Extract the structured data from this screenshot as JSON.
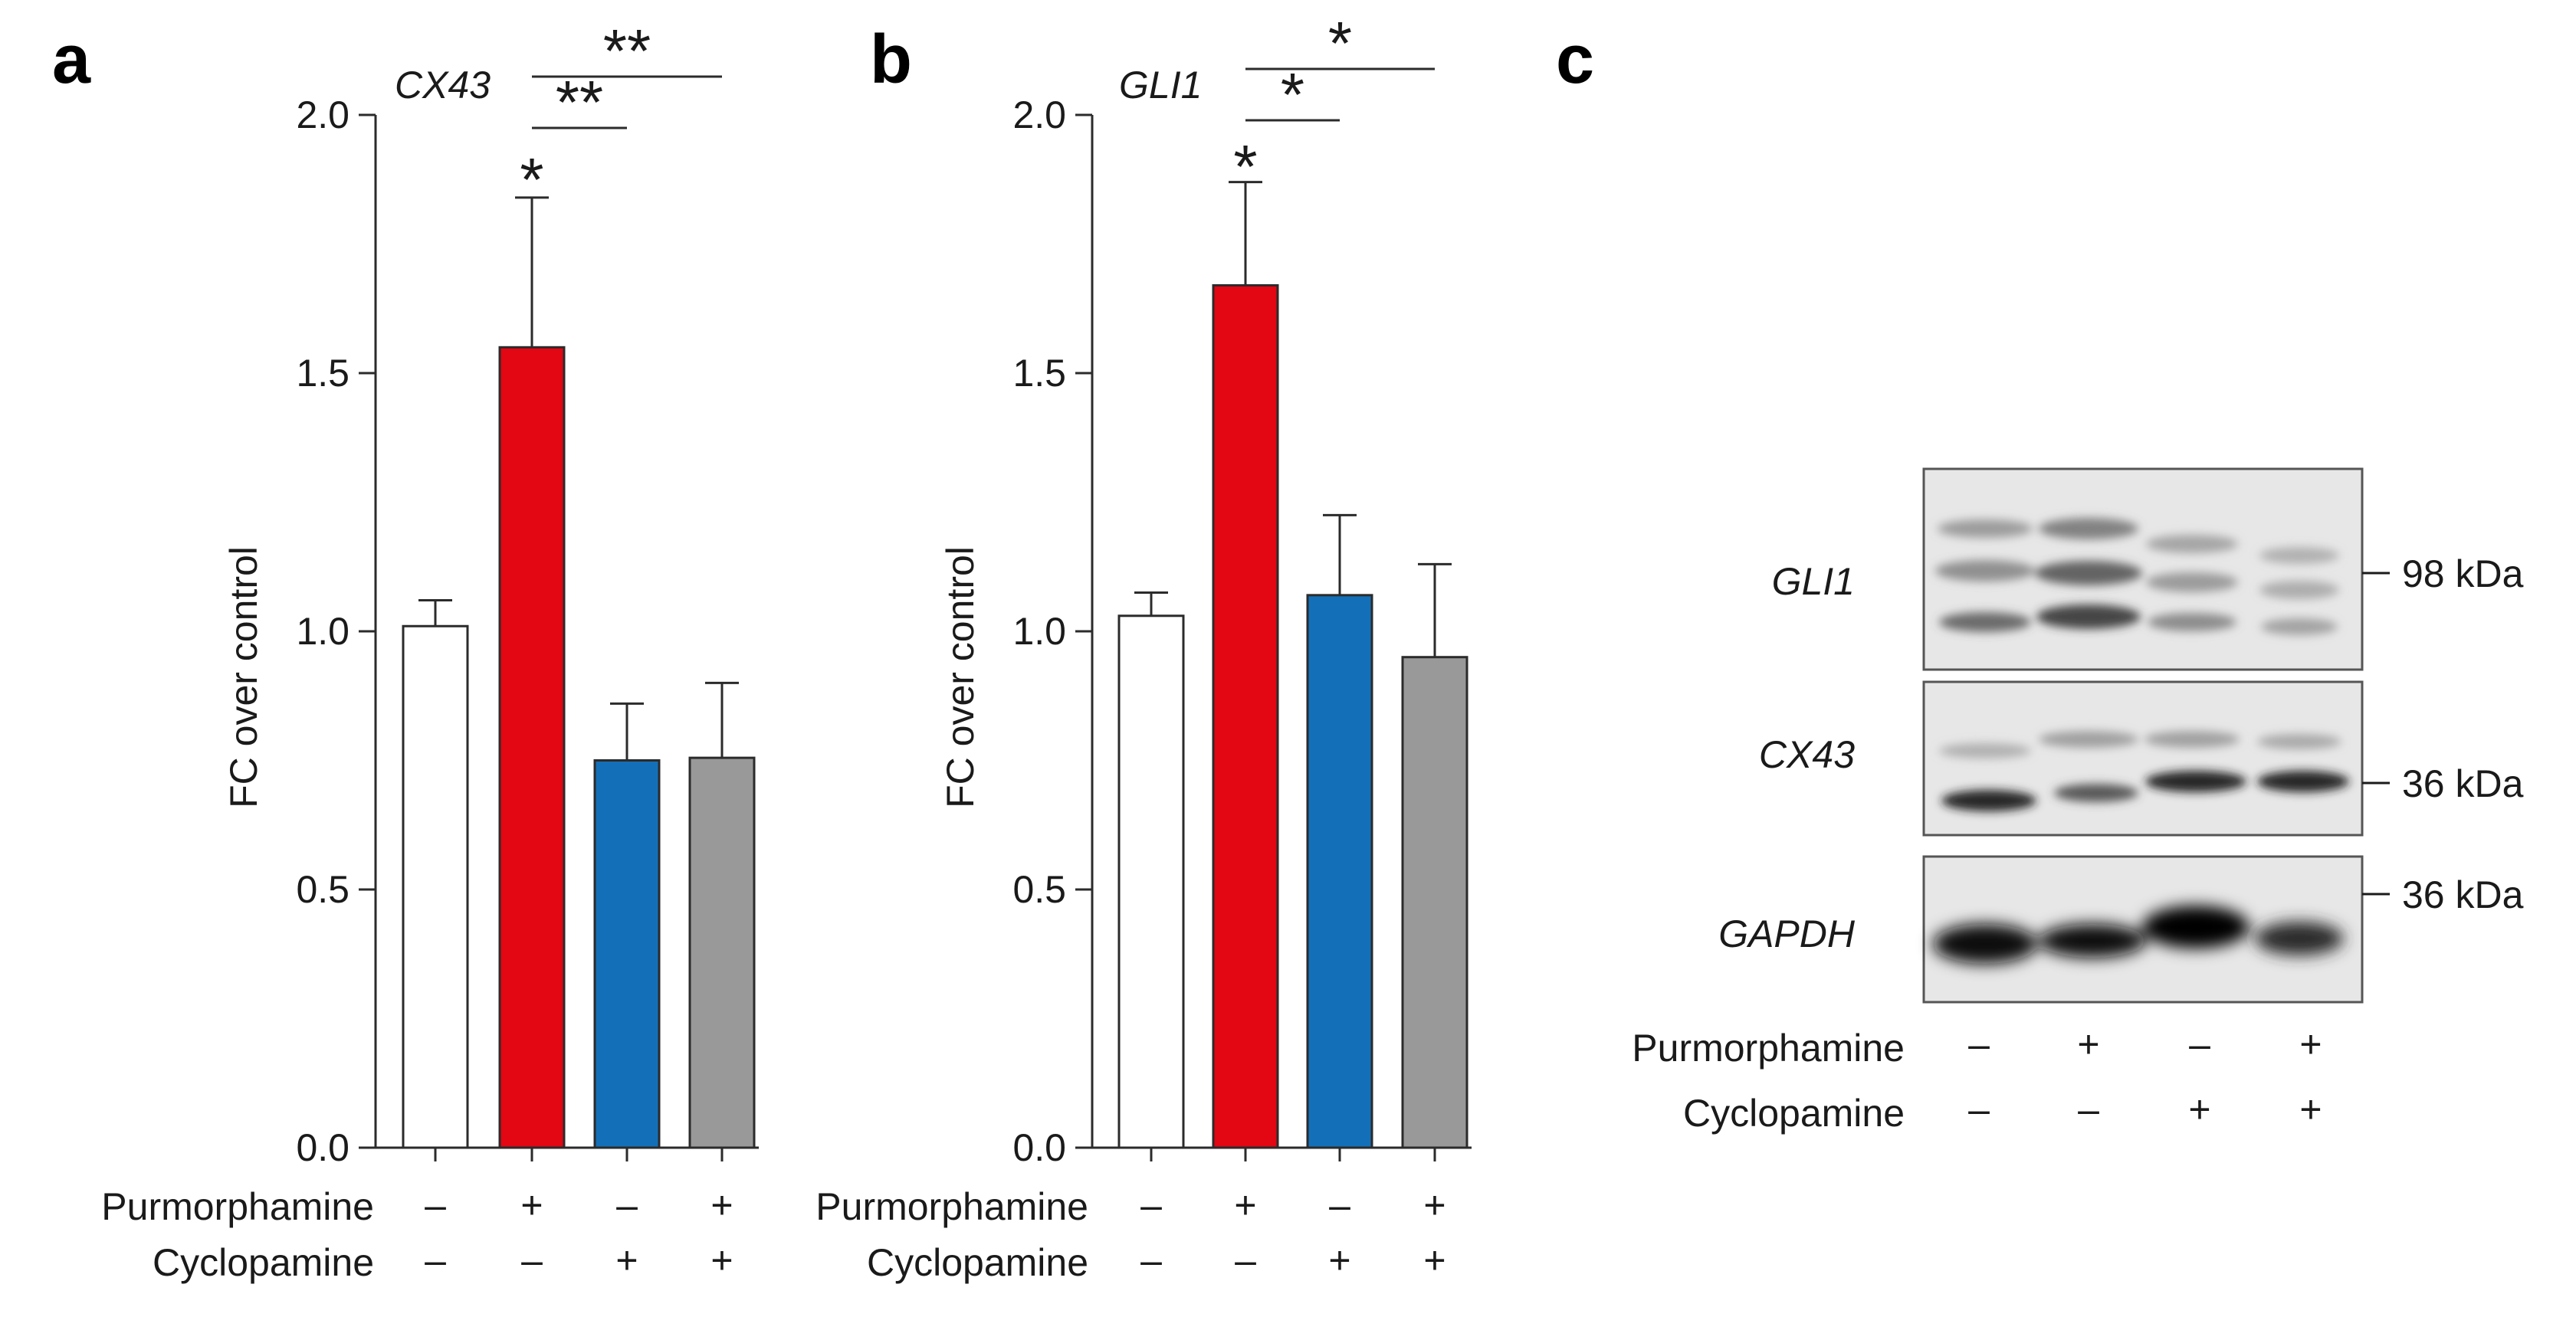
{
  "chart_data": [
    {
      "panel": "a",
      "type": "bar",
      "title": "CX43",
      "ylabel": "FC over control",
      "ylim": [
        0,
        2.0
      ],
      "yticks": [
        "0.0",
        "0.5",
        "1.0",
        "1.5",
        "2.0"
      ],
      "ytick_values": [
        0,
        0.5,
        1.0,
        1.5,
        2.0
      ],
      "values": [
        1.01,
        1.55,
        0.75,
        0.755
      ],
      "errors": [
        0.05,
        0.29,
        0.11,
        0.145
      ],
      "colors": [
        "#ffffff",
        "#e30613",
        "#1370b8",
        "#999999"
      ],
      "significance_above_bar": "*",
      "brackets": [
        {
          "from": 1,
          "to": 2,
          "label": "**"
        },
        {
          "from": 1,
          "to": 3,
          "label": "**"
        }
      ],
      "rows": [
        {
          "name": "Purmorphamine",
          "signs": [
            "–",
            "+",
            "–",
            "+"
          ]
        },
        {
          "name": "Cyclopamine",
          "signs": [
            "–",
            "–",
            "+",
            "+"
          ]
        }
      ]
    },
    {
      "panel": "b",
      "type": "bar",
      "title": "GLI1",
      "ylabel": "FC over control",
      "ylim": [
        0,
        2.0
      ],
      "yticks": [
        "0.0",
        "0.5",
        "1.0",
        "1.5",
        "2.0"
      ],
      "ytick_values": [
        0,
        0.5,
        1.0,
        1.5,
        2.0
      ],
      "values": [
        1.03,
        1.67,
        1.07,
        0.95
      ],
      "errors": [
        0.045,
        0.2,
        0.155,
        0.18
      ],
      "colors": [
        "#ffffff",
        "#e30613",
        "#1370b8",
        "#999999"
      ],
      "significance_above_bar": "*",
      "brackets": [
        {
          "from": 1,
          "to": 2,
          "label": "*"
        },
        {
          "from": 1,
          "to": 3,
          "label": "*"
        }
      ],
      "rows": [
        {
          "name": "Purmorphamine",
          "signs": [
            "–",
            "+",
            "–",
            "+"
          ]
        },
        {
          "name": "Cyclopamine",
          "signs": [
            "–",
            "–",
            "+",
            "+"
          ]
        }
      ]
    }
  ],
  "blot": {
    "panel": "c",
    "proteins": [
      "GLI1",
      "CX43",
      "GAPDH"
    ],
    "markers": [
      "98 kDa",
      "36 kDa",
      "36 kDa"
    ],
    "rows": [
      {
        "name": "Purmorphamine",
        "signs": [
          "–",
          "+",
          "–",
          "+"
        ]
      },
      {
        "name": "Cyclopamine",
        "signs": [
          "–",
          "–",
          "+",
          "+"
        ]
      }
    ]
  }
}
